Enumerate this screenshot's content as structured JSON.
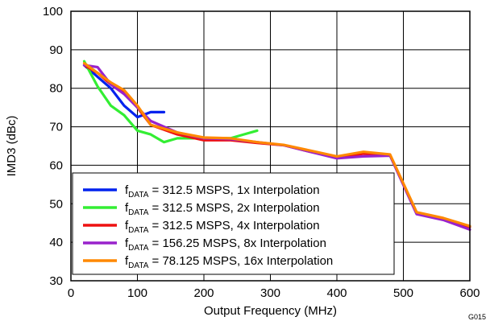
{
  "chart_data": {
    "type": "line",
    "title": "",
    "xlabel": "Output Frequency (MHz)",
    "ylabel": "IMD3 (dBc)",
    "xlim": [
      0,
      600
    ],
    "ylim": [
      30,
      100
    ],
    "xticks": [
      0,
      100,
      200,
      300,
      400,
      500,
      600
    ],
    "yticks": [
      30,
      40,
      50,
      60,
      70,
      80,
      90,
      100
    ],
    "grid": true,
    "legend_position": "bottom-left",
    "figure_code": "G015",
    "series": [
      {
        "name": "fDATA = 312.5 MSPS, 1x Interpolation",
        "legend_parts": [
          "f",
          "DATA",
          " = 312.5 MSPS, 1x Interpolation"
        ],
        "color": "#0022ee",
        "x": [
          20,
          40,
          60,
          80,
          100,
          120,
          140
        ],
        "y": [
          86,
          83,
          80,
          75.5,
          72.5,
          73.8,
          73.8
        ]
      },
      {
        "name": "fDATA = 312.5 MSPS, 2x Interpolation",
        "legend_parts": [
          "f",
          "DATA",
          " = 312.5 MSPS, 2x Interpolation"
        ],
        "color": "#33ee33",
        "x": [
          20,
          40,
          60,
          80,
          100,
          120,
          140,
          160,
          180,
          200,
          220,
          240,
          260,
          280
        ],
        "y": [
          87,
          80.5,
          75.5,
          73,
          69,
          68,
          66,
          67,
          67,
          67,
          67,
          67,
          68,
          69
        ]
      },
      {
        "name": "fDATA = 312.5 MSPS, 4x Interpolation",
        "legend_parts": [
          "f",
          "DATA",
          " = 312.5 MSPS, 4x Interpolation"
        ],
        "color": "#ee1111",
        "x": [
          20,
          40,
          60,
          80,
          100,
          120,
          160,
          200,
          240,
          280,
          320,
          360,
          400,
          440,
          480,
          520,
          560,
          600
        ],
        "y": [
          86,
          84,
          81,
          79,
          75,
          70.5,
          68,
          66.5,
          66.5,
          65.8,
          65.2,
          63.5,
          62,
          63,
          62.6,
          47.5,
          46,
          44
        ]
      },
      {
        "name": "fDATA = 156.25 MSPS, 8x Interpolation",
        "legend_parts": [
          "f",
          "DATA",
          " = 156.25 MSPS, 8x Interpolation"
        ],
        "color": "#9922cc",
        "x": [
          20,
          40,
          60,
          80,
          100,
          120,
          160,
          200,
          240,
          280,
          320,
          360,
          400,
          440,
          480,
          520,
          560,
          600
        ],
        "y": [
          86,
          85.5,
          81,
          78.5,
          75,
          71.5,
          68.5,
          67,
          66.8,
          66,
          65.2,
          63.5,
          61.8,
          62.3,
          62.5,
          47.3,
          45.8,
          43.3
        ]
      },
      {
        "name": "fDATA = 78.125 MSPS, 16x Interpolation",
        "legend_parts": [
          "f",
          "DATA",
          " = 78.125 MSPS, 16x Interpolation"
        ],
        "color": "#ff8800",
        "x": [
          20,
          40,
          60,
          80,
          100,
          120,
          160,
          200,
          240,
          280,
          320,
          360,
          400,
          440,
          480,
          520,
          560,
          600
        ],
        "y": [
          86.5,
          84,
          81.5,
          79.5,
          75.5,
          70.5,
          68.5,
          67.2,
          67,
          66,
          65.3,
          63.8,
          62.3,
          63.5,
          62.8,
          47.8,
          46.3,
          44.2
        ]
      }
    ]
  }
}
